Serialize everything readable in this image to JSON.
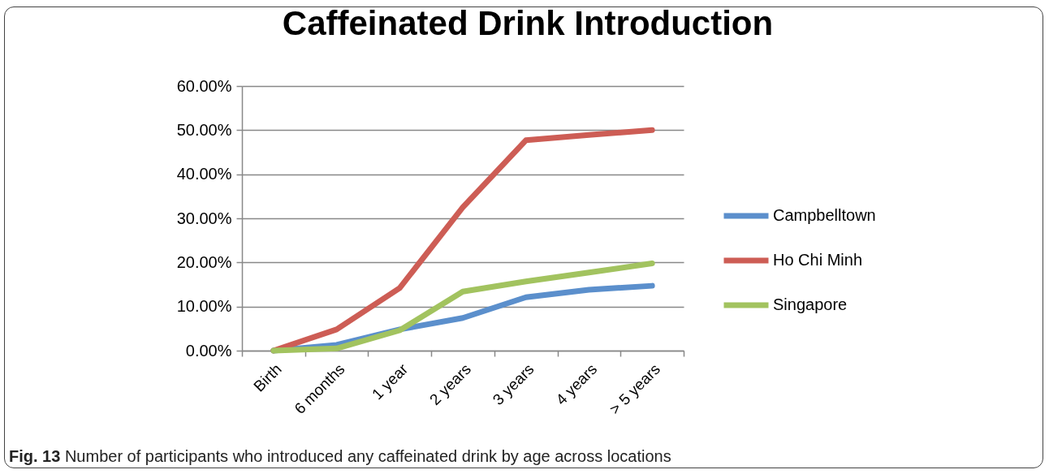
{
  "chart_data": {
    "type": "line",
    "title": "Caffeinated Drink Introduction",
    "categories": [
      "Birth",
      "6 months",
      "1 year",
      "2 years",
      "3 years",
      "4 years",
      "> 5 years"
    ],
    "series": [
      {
        "name": "Campbelltown",
        "color": "#5b8fcc",
        "values": [
          0,
          1.3,
          4.8,
          7.4,
          12.1,
          13.8,
          14.7
        ]
      },
      {
        "name": "Ho Chi Minh",
        "color": "#cd5d55",
        "values": [
          0,
          4.8,
          14.2,
          32.5,
          47.7,
          48.9,
          50
        ]
      },
      {
        "name": "Singapore",
        "color": "#a2c35f",
        "values": [
          0,
          0.5,
          4.6,
          13.4,
          15.7,
          17.7,
          19.8
        ]
      }
    ],
    "ylim": [
      0,
      60
    ],
    "yticks": [
      {
        "value": 0,
        "label": "0.00%"
      },
      {
        "value": 10,
        "label": "10.00%"
      },
      {
        "value": 20,
        "label": "20.00%"
      },
      {
        "value": 30,
        "label": "30.00%"
      },
      {
        "value": 40,
        "label": "40.00%"
      },
      {
        "value": 50,
        "label": "50.00%"
      },
      {
        "value": 60,
        "label": "60.00%"
      }
    ],
    "grid": "y",
    "legend": "right",
    "annotations": [
      "Fig. 13",
      "Number of participants who introduced any caffeinated drink by age across locations"
    ]
  }
}
